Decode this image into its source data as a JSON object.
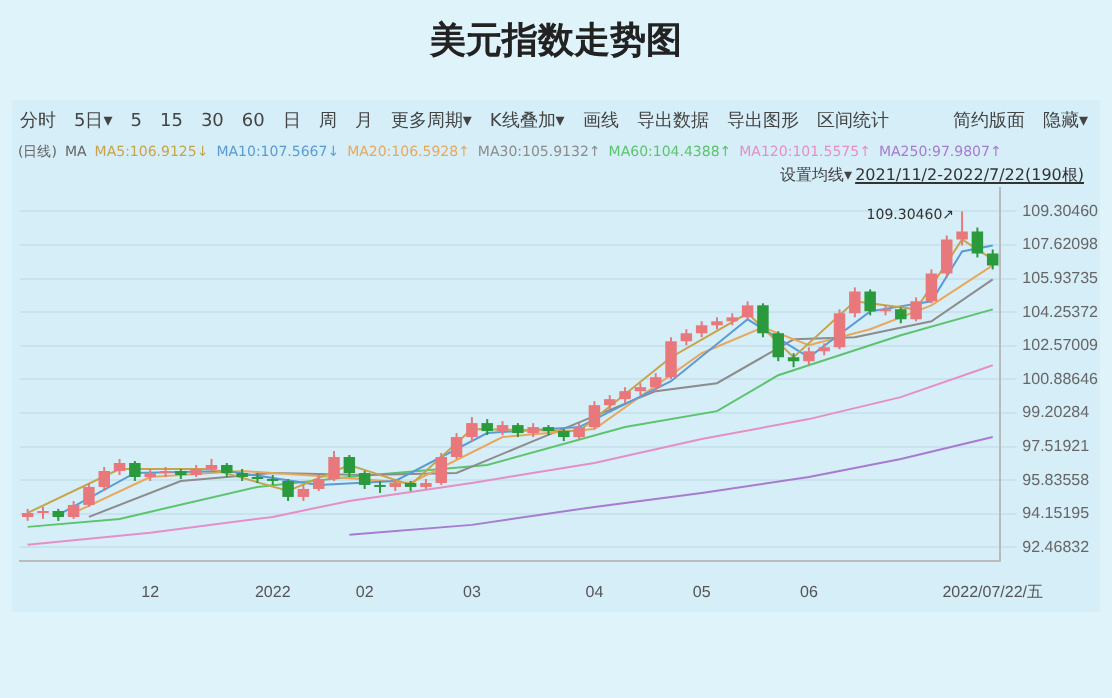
{
  "chart_data": {
    "type": "candlestick",
    "title": "美元指数走势图",
    "annotations": [
      "分时",
      "5日▾",
      "5",
      "15",
      "30",
      "60",
      "日",
      "周",
      "月",
      "更多周期▾",
      "K线叠加▾",
      "画线",
      "导出数据",
      "导出图形",
      "区间统计",
      "简约版面",
      "隐藏▾",
      "(日线)",
      "MA",
      "设置均线▾",
      "2021/11/2-2022/7/22(190根)",
      "109.30460↗"
    ],
    "categories": [
      null,
      null,
      null,
      null,
      null,
      null,
      null,
      null,
      "12",
      null,
      null,
      null,
      null,
      null,
      null,
      null,
      "2022",
      null,
      null,
      null,
      null,
      null,
      "02",
      null,
      null,
      null,
      null,
      null,
      null,
      "03",
      null,
      null,
      null,
      null,
      null,
      null,
      null,
      "04",
      null,
      null,
      null,
      null,
      null,
      null,
      "05",
      null,
      null,
      null,
      null,
      null,
      null,
      "06",
      null,
      null,
      null,
      null,
      null,
      null,
      null,
      null,
      null,
      null,
      null,
      "2022/07/22/五"
    ],
    "ohlc": [
      [
        94.0,
        94.4,
        93.8,
        94.2
      ],
      [
        94.2,
        94.5,
        93.9,
        94.3
      ],
      [
        94.3,
        94.4,
        93.8,
        94.0
      ],
      [
        94.0,
        94.8,
        93.9,
        94.6
      ],
      [
        94.6,
        95.7,
        94.5,
        95.5
      ],
      [
        95.5,
        96.5,
        95.3,
        96.3
      ],
      [
        96.3,
        96.9,
        96.1,
        96.7
      ],
      [
        96.7,
        96.8,
        95.8,
        96.0
      ],
      [
        96.0,
        96.4,
        95.8,
        96.2
      ],
      [
        96.2,
        96.5,
        96.0,
        96.3
      ],
      [
        96.3,
        96.4,
        95.9,
        96.1
      ],
      [
        96.1,
        96.6,
        96.0,
        96.4
      ],
      [
        96.4,
        96.9,
        96.3,
        96.6
      ],
      [
        96.6,
        96.7,
        96.0,
        96.2
      ],
      [
        96.2,
        96.4,
        95.8,
        96.0
      ],
      [
        96.0,
        96.2,
        95.7,
        95.9
      ],
      [
        95.9,
        96.1,
        95.6,
        95.8
      ],
      [
        95.8,
        95.9,
        94.8,
        95.0
      ],
      [
        95.0,
        95.6,
        94.8,
        95.4
      ],
      [
        95.4,
        96.1,
        95.3,
        95.9
      ],
      [
        95.9,
        97.3,
        95.8,
        97.0
      ],
      [
        97.0,
        97.1,
        96.0,
        96.2
      ],
      [
        96.2,
        96.3,
        95.4,
        95.6
      ],
      [
        95.6,
        95.8,
        95.2,
        95.5
      ],
      [
        95.5,
        95.9,
        95.3,
        95.7
      ],
      [
        95.7,
        95.8,
        95.3,
        95.5
      ],
      [
        95.5,
        95.9,
        95.4,
        95.7
      ],
      [
        95.7,
        97.2,
        95.6,
        97.0
      ],
      [
        97.0,
        98.2,
        96.9,
        98.0
      ],
      [
        98.0,
        99.0,
        97.8,
        98.7
      ],
      [
        98.7,
        98.9,
        98.1,
        98.3
      ],
      [
        98.3,
        98.8,
        98.1,
        98.6
      ],
      [
        98.6,
        98.7,
        98.0,
        98.2
      ],
      [
        98.2,
        98.7,
        98.0,
        98.5
      ],
      [
        98.5,
        98.6,
        98.1,
        98.3
      ],
      [
        98.3,
        98.4,
        97.8,
        98.0
      ],
      [
        98.0,
        98.7,
        97.9,
        98.5
      ],
      [
        98.5,
        99.8,
        98.4,
        99.6
      ],
      [
        99.6,
        100.1,
        99.4,
        99.9
      ],
      [
        99.9,
        100.5,
        99.7,
        100.3
      ],
      [
        100.3,
        100.7,
        100.1,
        100.5
      ],
      [
        100.5,
        101.2,
        100.3,
        101.0
      ],
      [
        101.0,
        103.0,
        100.9,
        102.8
      ],
      [
        102.8,
        103.4,
        102.6,
        103.2
      ],
      [
        103.2,
        103.8,
        103.0,
        103.6
      ],
      [
        103.6,
        104.0,
        103.4,
        103.8
      ],
      [
        103.8,
        104.2,
        103.6,
        104.0
      ],
      [
        104.0,
        104.8,
        103.9,
        104.6
      ],
      [
        104.6,
        104.7,
        103.0,
        103.2
      ],
      [
        103.2,
        103.3,
        101.8,
        102.0
      ],
      [
        102.0,
        102.2,
        101.5,
        101.8
      ],
      [
        101.8,
        102.5,
        101.6,
        102.3
      ],
      [
        102.3,
        102.7,
        102.1,
        102.5
      ],
      [
        102.5,
        104.4,
        102.4,
        104.2
      ],
      [
        104.2,
        105.5,
        104.0,
        105.3
      ],
      [
        105.3,
        105.4,
        104.1,
        104.3
      ],
      [
        104.3,
        104.6,
        104.1,
        104.4
      ],
      [
        104.4,
        104.5,
        103.7,
        103.9
      ],
      [
        103.9,
        105.0,
        103.8,
        104.8
      ],
      [
        104.8,
        106.4,
        104.7,
        106.2
      ],
      [
        106.2,
        108.1,
        106.0,
        107.9
      ],
      [
        107.9,
        109.3046,
        107.6,
        108.3
      ],
      [
        108.3,
        108.5,
        107.0,
        107.2
      ],
      [
        107.2,
        107.4,
        106.4,
        106.6
      ]
    ],
    "colors": [
      "#e8787c",
      "#e8787c",
      "#2a9a3c",
      "#e8787c",
      "#e8787c",
      "#e8787c",
      "#e8787c",
      "#2a9a3c",
      "#e8787c",
      "#e8787c",
      "#2a9a3c",
      "#e8787c",
      "#e8787c",
      "#2a9a3c",
      "#2a9a3c",
      "#2a9a3c",
      "#2a9a3c",
      "#2a9a3c",
      "#e8787c",
      "#e8787c",
      "#e8787c",
      "#2a9a3c",
      "#2a9a3c",
      "#2a9a3c",
      "#e8787c",
      "#2a9a3c",
      "#e8787c",
      "#e8787c",
      "#e8787c",
      "#e8787c",
      "#2a9a3c",
      "#e8787c",
      "#2a9a3c",
      "#e8787c",
      "#2a9a3c",
      "#2a9a3c",
      "#e8787c",
      "#e8787c",
      "#e8787c",
      "#e8787c",
      "#e8787c",
      "#e8787c",
      "#e8787c",
      "#e8787c",
      "#e8787c",
      "#e8787c",
      "#e8787c",
      "#e8787c",
      "#2a9a3c",
      "#2a9a3c",
      "#2a9a3c",
      "#e8787c",
      "#e8787c",
      "#e8787c",
      "#e8787c",
      "#2a9a3c",
      "#e8787c",
      "#2a9a3c",
      "#e8787c",
      "#e8787c",
      "#e8787c",
      "#e8787c",
      "#2a9a3c",
      "#2a9a3c"
    ],
    "series": [
      {
        "type": "line",
        "name": "MA5:106.9125↓",
        "color": "#c7a44a",
        "values": [
          94.2,
          null,
          null,
          null,
          null,
          null,
          96.4,
          null,
          null,
          null,
          null,
          null,
          96.4,
          null,
          null,
          null,
          null,
          95.3,
          null,
          null,
          null,
          96.6,
          null,
          null,
          null,
          95.6,
          null,
          null,
          null,
          98.4,
          null,
          null,
          null,
          null,
          null,
          null,
          98.3,
          null,
          null,
          null,
          null,
          null,
          102.0,
          null,
          null,
          null,
          null,
          104.2,
          null,
          null,
          102.0,
          null,
          null,
          null,
          104.8,
          null,
          null,
          null,
          104.4,
          null,
          null,
          107.9,
          null,
          106.9
        ]
      },
      {
        "type": "line",
        "name": "MA10:107.5667↓",
        "color": "#5b9bd5",
        "values": [
          null,
          null,
          94.1,
          null,
          null,
          null,
          null,
          96.2,
          null,
          null,
          null,
          null,
          null,
          96.3,
          null,
          null,
          null,
          null,
          null,
          95.6,
          null,
          null,
          null,
          null,
          95.8,
          null,
          null,
          null,
          null,
          null,
          98.2,
          null,
          null,
          null,
          null,
          null,
          98.5,
          null,
          null,
          null,
          null,
          null,
          100.8,
          null,
          null,
          null,
          null,
          103.9,
          null,
          null,
          null,
          102.0,
          null,
          null,
          null,
          104.3,
          null,
          null,
          null,
          104.8,
          null,
          107.3,
          null,
          107.6
        ]
      },
      {
        "type": "line",
        "name": "MA20:106.5928↑",
        "color": "#e8a85c",
        "values": [
          null,
          null,
          null,
          94.2,
          null,
          null,
          null,
          null,
          96.0,
          null,
          null,
          null,
          null,
          null,
          96.3,
          null,
          null,
          null,
          null,
          null,
          96.0,
          null,
          null,
          null,
          null,
          95.7,
          null,
          null,
          null,
          null,
          null,
          98.0,
          null,
          null,
          null,
          null,
          null,
          98.4,
          null,
          null,
          null,
          null,
          null,
          null,
          102.2,
          null,
          null,
          null,
          103.5,
          null,
          null,
          102.6,
          null,
          null,
          null,
          103.4,
          null,
          null,
          null,
          104.6,
          null,
          null,
          null,
          106.6
        ]
      },
      {
        "type": "line",
        "name": "MA30:105.9132↑",
        "color": "#8c8c8c",
        "values": [
          null,
          null,
          null,
          null,
          94.0,
          null,
          null,
          null,
          null,
          null,
          95.8,
          null,
          null,
          null,
          null,
          null,
          96.2,
          null,
          null,
          null,
          null,
          null,
          96.1,
          null,
          null,
          null,
          null,
          null,
          96.2,
          null,
          null,
          null,
          null,
          97.8,
          null,
          null,
          null,
          null,
          null,
          null,
          null,
          100.3,
          null,
          null,
          null,
          100.7,
          null,
          null,
          null,
          null,
          102.9,
          null,
          null,
          null,
          103.0,
          null,
          null,
          null,
          null,
          103.8,
          null,
          null,
          null,
          105.9
        ]
      },
      {
        "type": "line",
        "name": "MA60:104.4388↑",
        "color": "#5cc46e",
        "values": [
          93.5,
          null,
          null,
          null,
          null,
          null,
          93.9,
          null,
          null,
          null,
          null,
          null,
          null,
          null,
          null,
          95.5,
          null,
          null,
          null,
          null,
          null,
          96.0,
          null,
          null,
          null,
          null,
          null,
          null,
          null,
          null,
          96.6,
          null,
          null,
          null,
          null,
          null,
          null,
          null,
          null,
          98.5,
          null,
          null,
          null,
          null,
          null,
          99.3,
          null,
          null,
          null,
          101.1,
          null,
          null,
          null,
          null,
          null,
          null,
          null,
          103.1,
          null,
          null,
          null,
          null,
          null,
          104.4
        ]
      },
      {
        "type": "line",
        "name": "MA120:101.5575↑",
        "color": "#e58fc8",
        "values": [
          92.6,
          null,
          null,
          null,
          null,
          null,
          null,
          null,
          93.2,
          null,
          null,
          null,
          null,
          null,
          null,
          null,
          94.0,
          null,
          null,
          null,
          null,
          94.8,
          null,
          null,
          null,
          null,
          null,
          null,
          null,
          95.7,
          null,
          null,
          null,
          null,
          null,
          null,
          null,
          96.7,
          null,
          null,
          null,
          null,
          null,
          null,
          97.9,
          null,
          null,
          null,
          null,
          null,
          null,
          98.9,
          null,
          null,
          null,
          null,
          null,
          100.0,
          null,
          null,
          null,
          null,
          null,
          101.6
        ]
      },
      {
        "type": "line",
        "name": "MA250:97.9807↑",
        "color": "#a77bd1",
        "values": [
          null,
          null,
          null,
          null,
          null,
          null,
          null,
          null,
          null,
          null,
          null,
          null,
          null,
          null,
          null,
          null,
          null,
          null,
          null,
          null,
          null,
          93.1,
          null,
          null,
          null,
          null,
          null,
          null,
          null,
          93.6,
          null,
          null,
          null,
          null,
          null,
          null,
          null,
          94.5,
          null,
          null,
          null,
          null,
          null,
          null,
          95.2,
          null,
          null,
          null,
          null,
          null,
          null,
          96.0,
          null,
          null,
          null,
          null,
          null,
          96.9,
          null,
          null,
          null,
          null,
          null,
          98.0
        ]
      }
    ],
    "ylim": [
      91.8,
      110.5
    ],
    "yticks": [
      92.46832,
      94.15195,
      95.83558,
      97.51921,
      99.20284,
      100.88646,
      102.57009,
      104.25372,
      105.93735,
      107.62098,
      {
        "value": 109.3046,
        "label": "109.30460"
      }
    ],
    "grid": "y",
    "legend": "top"
  }
}
